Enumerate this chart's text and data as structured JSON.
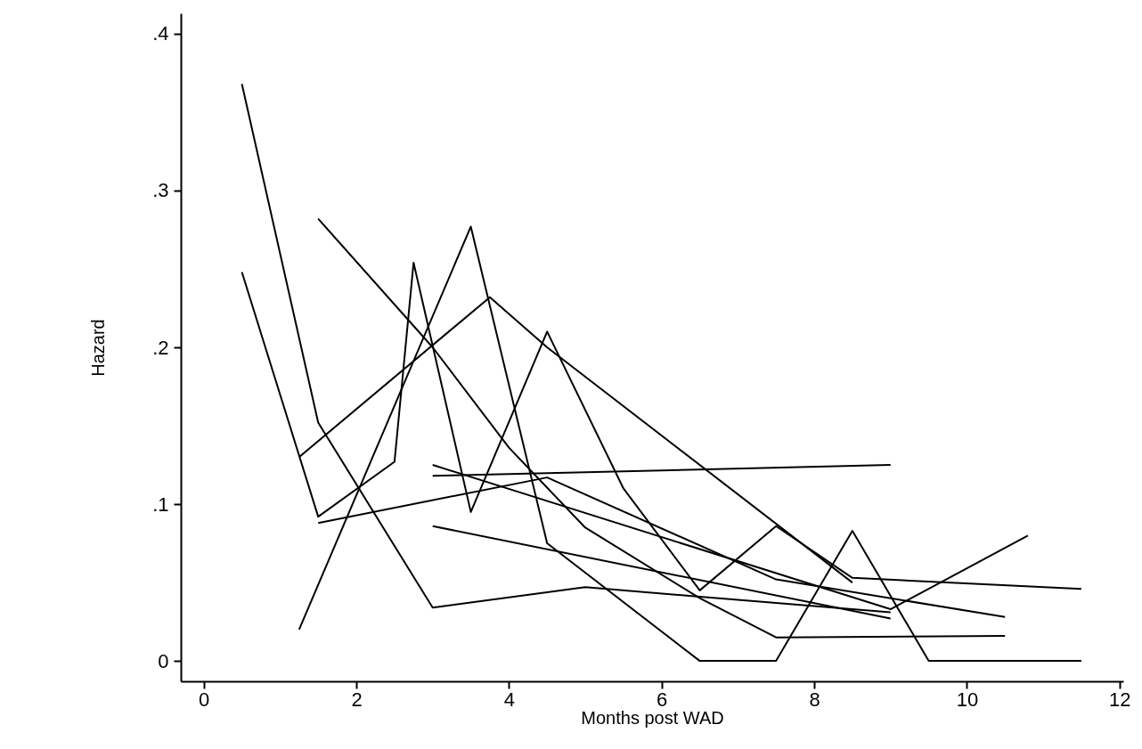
{
  "chart_data": {
    "type": "line",
    "xlabel": "Months post WAD",
    "ylabel": "Hazard",
    "xlim": [
      -0.3,
      12.05
    ],
    "xticks": [
      0,
      2,
      4,
      6,
      8,
      10,
      12
    ],
    "ylim": [
      -0.013,
      0.413
    ],
    "yticks": [
      {
        "value": 0,
        "label": "0"
      },
      {
        "value": 0.1,
        "label": ".1"
      },
      {
        "value": 0.2,
        "label": ".2"
      },
      {
        "value": 0.3,
        "label": ".3"
      },
      {
        "value": 0.4,
        "label": ".4"
      }
    ],
    "grid": false,
    "legend": false,
    "marker": "none",
    "line_style": "solid",
    "series": [
      {
        "color": "#000000",
        "x": [
          0.5,
          1.5,
          3,
          5,
          6.5,
          9
        ],
        "values": [
          0.368,
          0.152,
          0.034,
          0.047,
          0.041,
          0.031
        ]
      },
      {
        "color": "#000000",
        "x": [
          0.5,
          1.5,
          2.5,
          2.75,
          3.5,
          4.5,
          5.5,
          6.5,
          7.5,
          8.5,
          11.5
        ],
        "values": [
          0.248,
          0.092,
          0.127,
          0.254,
          0.095,
          0.21,
          0.11,
          0.045,
          0.086,
          0.053,
          0.046
        ]
      },
      {
        "color": "#000000",
        "x": [
          1.25,
          3.5,
          4.5,
          6.5,
          7.5,
          8.5,
          9.5,
          11.5
        ],
        "values": [
          0.02,
          0.277,
          0.075,
          0,
          0,
          0.083,
          0,
          0
        ]
      },
      {
        "color": "#000000",
        "x": [
          1.5,
          3,
          4,
          5,
          6.5,
          7.5,
          10.5
        ],
        "values": [
          0.282,
          0.2,
          0.136,
          0.085,
          0.04,
          0.015,
          0.016
        ]
      },
      {
        "color": "#000000",
        "x": [
          1.25,
          3.75,
          4.5,
          8.5
        ],
        "values": [
          0.13,
          0.232,
          0.2,
          0.05
        ]
      },
      {
        "color": "#000000",
        "x": [
          1.5,
          4.5,
          7.5,
          10.5
        ],
        "values": [
          0.088,
          0.117,
          0.052,
          0.028
        ]
      },
      {
        "color": "#000000",
        "x": [
          3,
          9,
          10.8
        ],
        "values": [
          0.125,
          0.033,
          0.08
        ]
      },
      {
        "color": "#000000",
        "x": [
          3,
          9
        ],
        "values": [
          0.118,
          0.125
        ]
      },
      {
        "color": "#000000",
        "x": [
          3,
          9
        ],
        "values": [
          0.086,
          0.027
        ]
      }
    ]
  }
}
